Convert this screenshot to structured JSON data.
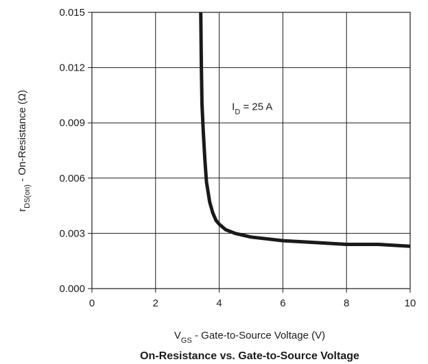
{
  "chart_data": {
    "type": "line",
    "title": "On-Resistance vs. Gate-to-Source Voltage",
    "xlabel": {
      "main": "V",
      "sub": "GS",
      "sep": " - ",
      "rest": "Gate-to-Source Voltage (V)"
    },
    "ylabel": {
      "main": "r",
      "sub": "DS(on)",
      "sep": " - ",
      "rest": "On-Resistance (Ω)"
    },
    "xlim": [
      0,
      10
    ],
    "ylim": [
      0,
      0.015
    ],
    "x_ticks": [
      "0",
      "2",
      "4",
      "6",
      "8",
      "10"
    ],
    "y_ticks": [
      "0.000",
      "0.003",
      "0.006",
      "0.009",
      "0.012",
      "0.015"
    ],
    "grid": true,
    "annotation": {
      "main": "I",
      "sub": "D",
      "rest": " = 25 A",
      "x": 4.4,
      "y": 0.0097
    },
    "series": [
      {
        "x": [
          3.42,
          3.44,
          3.46,
          3.5,
          3.55,
          3.6,
          3.7,
          3.8,
          3.9,
          4.0,
          4.2,
          4.5,
          5.0,
          6.0,
          7.0,
          8.0,
          9.0,
          10.0
        ],
        "y": [
          0.015,
          0.012,
          0.01,
          0.0085,
          0.007,
          0.0058,
          0.0047,
          0.0041,
          0.0037,
          0.0035,
          0.0032,
          0.003,
          0.0028,
          0.0026,
          0.0025,
          0.0024,
          0.0024,
          0.0023
        ]
      }
    ]
  },
  "colors": {
    "line": "#1a1a1a",
    "grid": "#1a1a1a",
    "background": "#ffffff"
  }
}
